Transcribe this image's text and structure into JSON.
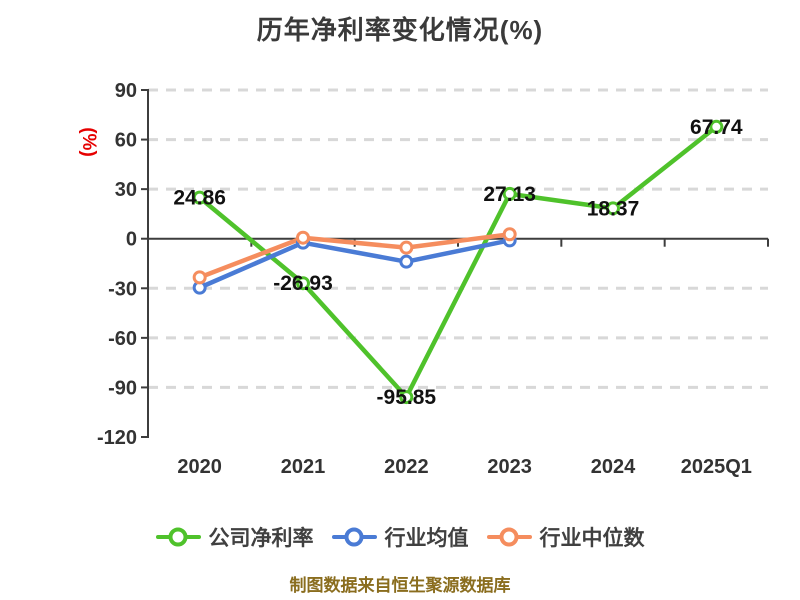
{
  "title": "历年净利率变化情况(%)",
  "footer": "制图数据来自恒生聚源数据库",
  "colors": {
    "grid": "#d8d8d8",
    "axis": "#3d3d3d",
    "tick_labels": "#333333",
    "data_labels": "#111111",
    "title": "#3a3a3a",
    "legend_text": "#404040",
    "footer": "#8a6d1e",
    "y_axis_label": "#e60000"
  },
  "chart_data": {
    "type": "line",
    "title": "历年净利率变化情况(%)",
    "categories": [
      "2020",
      "2021",
      "2022",
      "2023",
      "2024",
      "2025Q1"
    ],
    "y_axis": {
      "label": "(%)",
      "ticks": [
        90,
        60,
        30,
        0,
        -30,
        -60,
        -90,
        -120
      ],
      "min": -120,
      "max": 90
    },
    "grid": true,
    "legend_position": "bottom",
    "series": [
      {
        "name": "公司净利率",
        "color": "#4fc22b",
        "values": [
          24.86,
          -26.93,
          -95.85,
          27.13,
          18.37,
          67.74
        ],
        "point_labels": [
          "24.86",
          "-26.93",
          "-95.85",
          "27.13",
          "18.37",
          "67.74"
        ]
      },
      {
        "name": "行业均值",
        "color": "#4a7bd5",
        "values": [
          -29.6,
          -2.4,
          -13.9,
          -1.0,
          null,
          null
        ]
      },
      {
        "name": "行业中位数",
        "color": "#f58d5e",
        "values": [
          -23.4,
          0.6,
          -5.4,
          2.7,
          null,
          null
        ]
      }
    ]
  }
}
